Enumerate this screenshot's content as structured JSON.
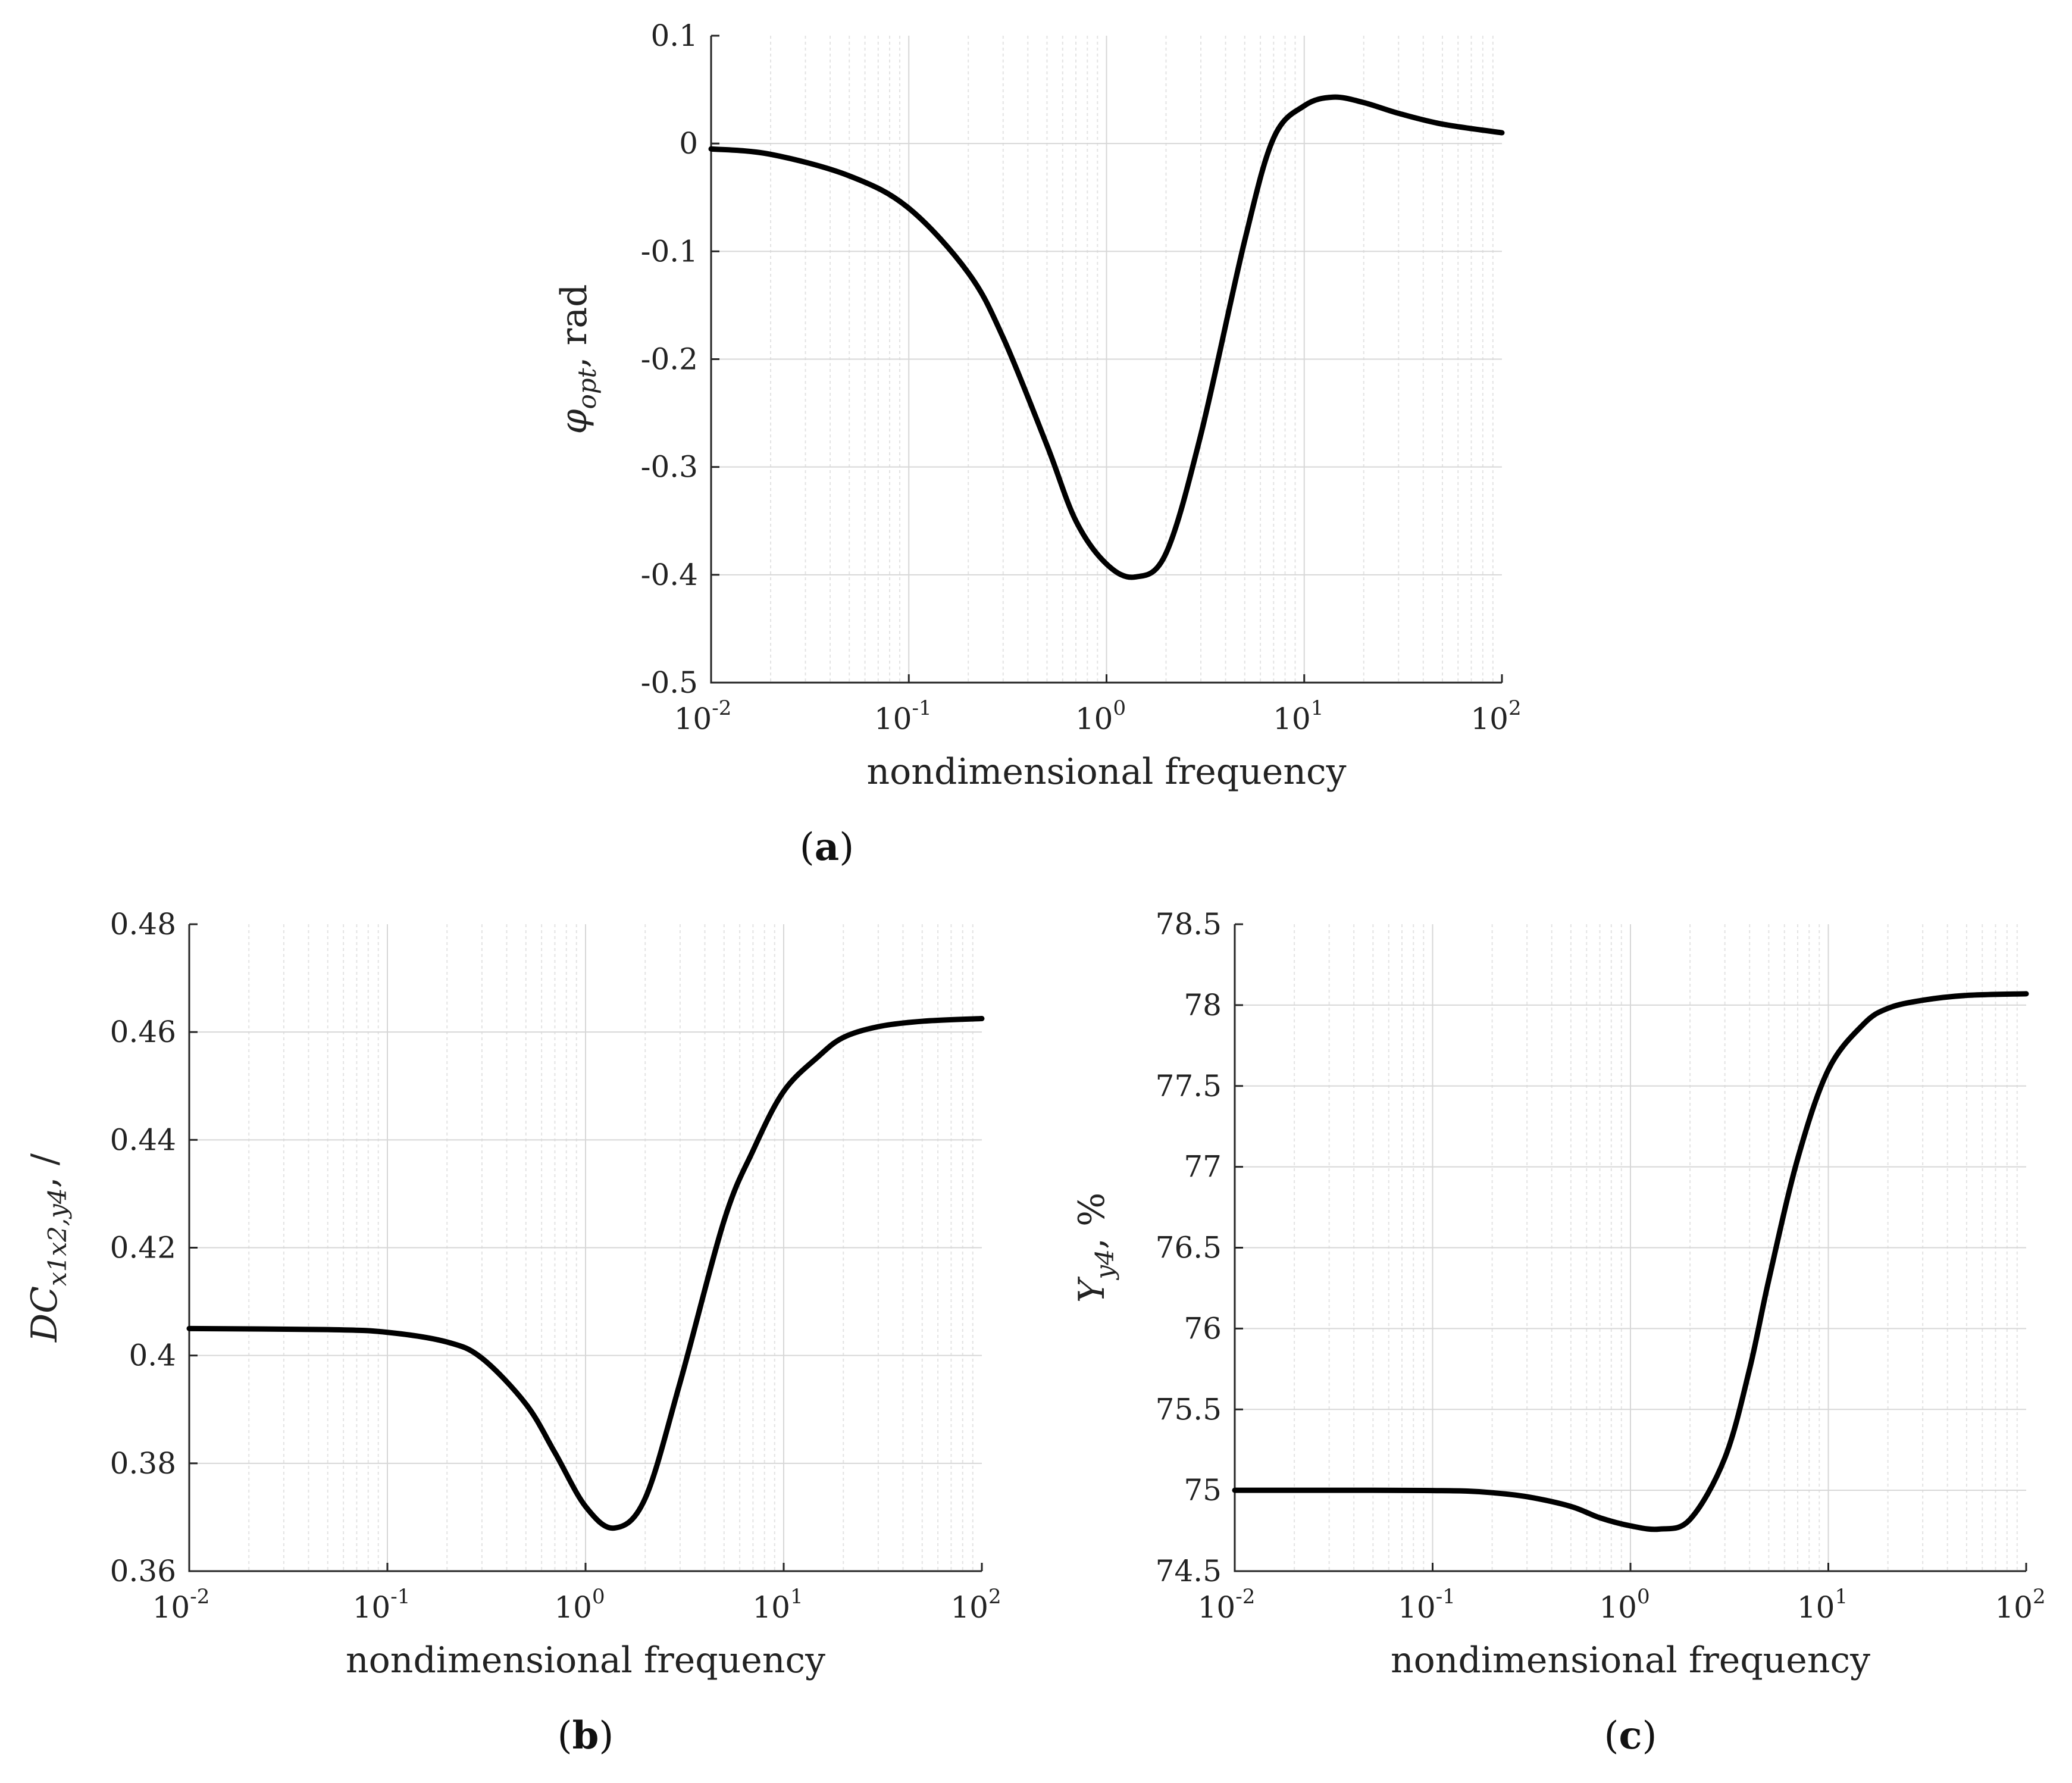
{
  "figure": {
    "xlabel": "nondimensional frequency",
    "x_tick_base": "10",
    "x_tick_exponents": [
      "-2",
      "-1",
      "0",
      "1",
      "2"
    ]
  },
  "chart_data": [
    {
      "id": "a",
      "type": "line",
      "panel_label": "a",
      "xscale": "log",
      "xlim": [
        0.01,
        100
      ],
      "ylim": [
        -0.5,
        0.1
      ],
      "yticks": [
        -0.5,
        -0.4,
        -0.3,
        -0.2,
        -0.1,
        0,
        0.1
      ],
      "ytick_labels": [
        "-0.5",
        "-0.4",
        "-0.3",
        "-0.2",
        "-0.1",
        "0",
        "0.1"
      ],
      "ylabel": {
        "symbol": "φ",
        "sub": "opt",
        "unit": ", rad"
      },
      "xlabel": "nondimensional frequency",
      "grid": true,
      "series": [
        {
          "name": "phi_opt",
          "x": [
            0.01,
            0.02,
            0.05,
            0.1,
            0.2,
            0.3,
            0.5,
            0.7,
            1.0,
            1.4,
            2.0,
            3.0,
            5.0,
            7.0,
            10.0,
            14.0,
            20.0,
            30.0,
            50.0,
            100.0
          ],
          "y": [
            -0.005,
            -0.01,
            -0.03,
            -0.06,
            -0.12,
            -0.18,
            -0.28,
            -0.35,
            -0.39,
            -0.402,
            -0.38,
            -0.27,
            -0.09,
            0.005,
            0.035,
            0.043,
            0.038,
            0.028,
            0.018,
            0.01
          ]
        }
      ]
    },
    {
      "id": "b",
      "type": "line",
      "panel_label": "b",
      "xscale": "log",
      "xlim": [
        0.01,
        100
      ],
      "ylim": [
        0.36,
        0.48
      ],
      "yticks": [
        0.36,
        0.38,
        0.4,
        0.42,
        0.44,
        0.46,
        0.48
      ],
      "ytick_labels": [
        "0.36",
        "0.38",
        "0.4",
        "0.42",
        "0.44",
        "0.46",
        "0.48"
      ],
      "ylabel": {
        "symbol": "DC",
        "sub": "x1x2,y4",
        "unit": ", /"
      },
      "xlabel": "nondimensional frequency",
      "grid": true,
      "series": [
        {
          "name": "DC_x1x2_y4",
          "x": [
            0.01,
            0.05,
            0.1,
            0.2,
            0.3,
            0.5,
            0.7,
            1.0,
            1.4,
            2.0,
            3.0,
            5.0,
            7.0,
            10.0,
            15.0,
            20.0,
            30.0,
            50.0,
            100.0
          ],
          "y": [
            0.405,
            0.4048,
            0.4043,
            0.4025,
            0.3995,
            0.391,
            0.382,
            0.372,
            0.368,
            0.3735,
            0.395,
            0.425,
            0.438,
            0.449,
            0.4555,
            0.459,
            0.461,
            0.462,
            0.4625
          ]
        }
      ]
    },
    {
      "id": "c",
      "type": "line",
      "panel_label": "c",
      "xscale": "log",
      "xlim": [
        0.01,
        100
      ],
      "ylim": [
        74.5,
        78.5
      ],
      "yticks": [
        74.5,
        75,
        75.5,
        76,
        76.5,
        77,
        77.5,
        78,
        78.5
      ],
      "ytick_labels": [
        "74.5",
        "75",
        "75.5",
        "76",
        "76.5",
        "77",
        "77.5",
        "78",
        "78.5"
      ],
      "ylabel": {
        "symbol": "Y",
        "sub": "y4",
        "unit": ", %"
      },
      "xlabel": "nondimensional frequency",
      "grid": true,
      "series": [
        {
          "name": "Y_y4",
          "x": [
            0.01,
            0.05,
            0.1,
            0.15,
            0.2,
            0.3,
            0.5,
            0.7,
            1.0,
            1.4,
            2.0,
            3.0,
            4.0,
            5.0,
            7.0,
            10.0,
            15.0,
            20.0,
            30.0,
            50.0,
            100.0
          ],
          "y": [
            75.0,
            75.0,
            74.998,
            74.995,
            74.985,
            74.96,
            74.9,
            74.83,
            74.78,
            74.76,
            74.82,
            75.2,
            75.75,
            76.3,
            77.05,
            77.6,
            77.88,
            77.98,
            78.03,
            78.06,
            78.07
          ]
        }
      ]
    }
  ]
}
